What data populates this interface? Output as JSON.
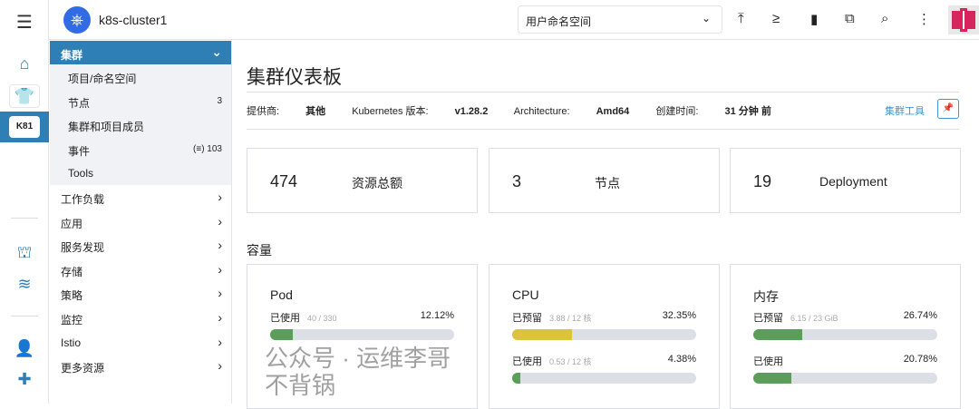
{
  "header": {
    "cluster_name": "k8s-cluster1",
    "namespace_select": "用户命名空间",
    "cluster_badge": "K81"
  },
  "sidebar": {
    "section": "集群",
    "items": [
      {
        "label": "项目/命名空间",
        "count": ""
      },
      {
        "label": "节点",
        "count": "3"
      },
      {
        "label": "集群和项目成员",
        "count": ""
      },
      {
        "label": "事件",
        "count": "(≡) 103"
      },
      {
        "label": "Tools",
        "count": ""
      }
    ],
    "groups": [
      "工作负载",
      "应用",
      "服务发现",
      "存储",
      "策略",
      "监控",
      "Istio",
      "更多资源"
    ]
  },
  "page": {
    "title": "集群仪表板",
    "meta": {
      "provider_label": "提供商:",
      "provider": "其他",
      "k8s_label": "Kubernetes 版本:",
      "k8s": "v1.28.2",
      "arch_label": "Architecture:",
      "arch": "Amd64",
      "created_label": "创建时间:",
      "created": "31 分钟 前"
    },
    "tools_link": "集群工具",
    "stats": [
      {
        "value": "474",
        "label": "资源总额"
      },
      {
        "value": "3",
        "label": "节点"
      },
      {
        "value": "19",
        "label": "Deployment"
      }
    ],
    "capacity_title": "容量",
    "capacity": [
      {
        "title": "Pod",
        "rows": [
          {
            "label": "已使用",
            "detail": "40 / 330",
            "percent": "12.12%",
            "fill": 12.12,
            "color": "#5a9e5a"
          }
        ]
      },
      {
        "title": "CPU",
        "rows": [
          {
            "label": "已预留",
            "detail": "3.88 / 12 核",
            "percent": "32.35%",
            "fill": 32.35,
            "color": "#dcc33b"
          },
          {
            "label": "已使用",
            "detail": "0.53 / 12 核",
            "percent": "4.38%",
            "fill": 4.38,
            "color": "#5a9e5a"
          }
        ]
      },
      {
        "title": "内存",
        "rows": [
          {
            "label": "已预留",
            "detail": "6.15 / 23 GiB",
            "percent": "26.74%",
            "fill": 26.74,
            "color": "#5a9e5a"
          },
          {
            "label": "已使用",
            "detail": "",
            "percent": "20.78%",
            "fill": 20.78,
            "color": "#5a9e5a"
          }
        ]
      }
    ]
  },
  "watermark": "公众号 · 运维李哥不背锅"
}
